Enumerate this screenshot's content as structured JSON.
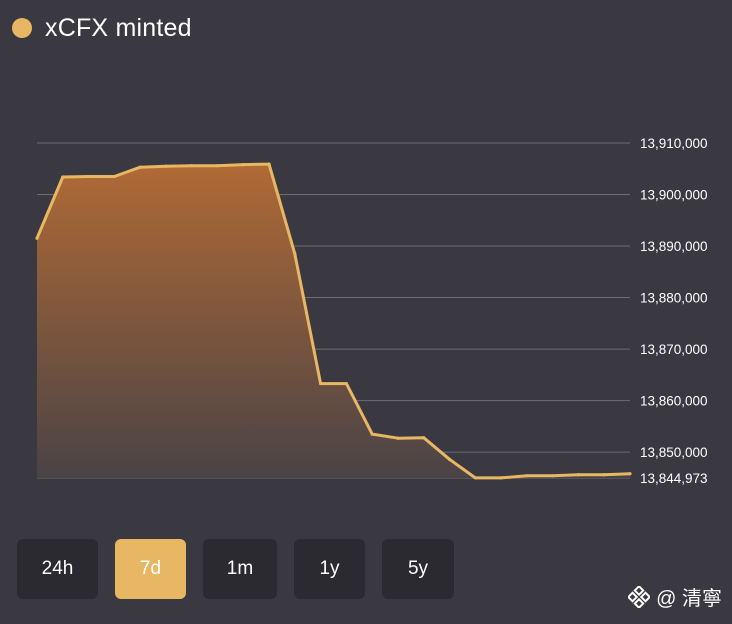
{
  "header": {
    "title": "xCFX minted"
  },
  "colors": {
    "accent": "#e8b763",
    "background": "#3a3841",
    "button": "#2b2a31",
    "grid": "#6e6c74"
  },
  "chart_data": {
    "type": "area",
    "title": "xCFX minted",
    "y_axis_side": "right",
    "ylim": [
      13844973,
      13910000
    ],
    "y_ticks": [
      {
        "value": 13910000,
        "label": "13,910,000"
      },
      {
        "value": 13900000,
        "label": "13,900,000"
      },
      {
        "value": 13890000,
        "label": "13,890,000"
      },
      {
        "value": 13880000,
        "label": "13,880,000"
      },
      {
        "value": 13870000,
        "label": "13,870,000"
      },
      {
        "value": 13860000,
        "label": "13,860,000"
      },
      {
        "value": 13850000,
        "label": "13,850,000"
      },
      {
        "value": 13844973,
        "label": "13,844,973"
      }
    ],
    "series": [
      {
        "name": "xCFX minted",
        "values": [
          13891500,
          13903400,
          13903500,
          13903500,
          13905300,
          13905500,
          13905600,
          13905600,
          13905800,
          13905900,
          13888500,
          13863300,
          13863300,
          13853500,
          13852700,
          13852800,
          13848600,
          13845000,
          13845000,
          13845400,
          13845400,
          13845600,
          13845600,
          13845800
        ]
      }
    ]
  },
  "timeframes": [
    {
      "label": "24h",
      "active": false
    },
    {
      "label": "7d",
      "active": true
    },
    {
      "label": "1m",
      "active": false
    },
    {
      "label": "1y",
      "active": false
    },
    {
      "label": "5y",
      "active": false
    }
  ],
  "watermark": {
    "text": "@ 清寧"
  }
}
